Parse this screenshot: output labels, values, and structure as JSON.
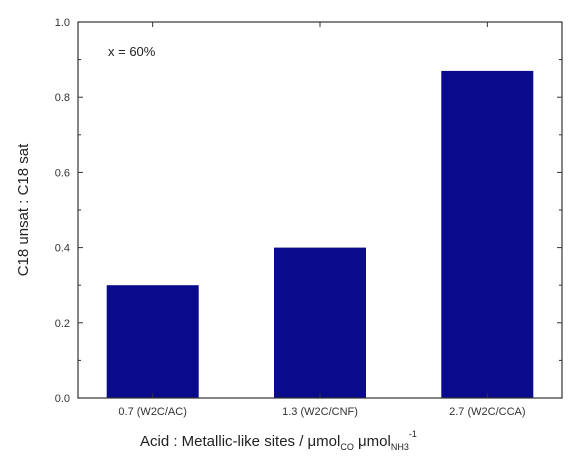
{
  "chart_data": {
    "type": "bar",
    "categories": [
      "0.7 (W2C/AC)",
      "1.3 (W2C/CNF)",
      "2.7 (W2C/CCA)"
    ],
    "values": [
      0.3,
      0.4,
      0.87
    ],
    "title": "",
    "annotation": "x = 60%",
    "xlabel": {
      "main": "Acid : Metallic-like sites / μmol",
      "sub1": "CO",
      "mid": " μmol",
      "sub2": "NH3",
      "sup": "-1"
    },
    "ylabel": "C18 unsat : C18 sat",
    "ylim": [
      0.0,
      1.0
    ],
    "yticks": [
      "0.0",
      "0.2",
      "0.4",
      "0.6",
      "0.8",
      "1.0"
    ],
    "grid": false,
    "bar_color": "#0a0a8c",
    "axis_color": "#333333"
  }
}
